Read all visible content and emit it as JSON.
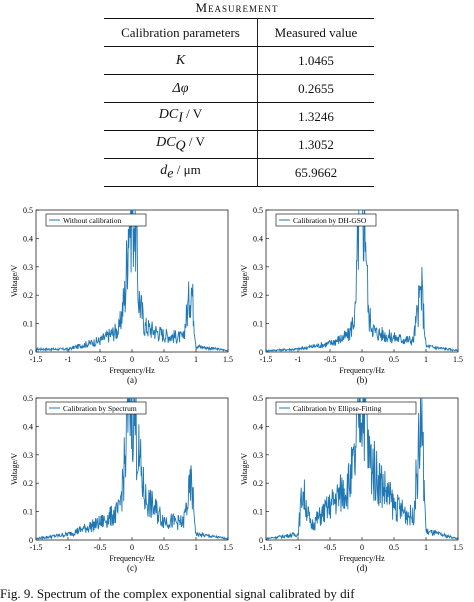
{
  "table": {
    "title": "Measurement",
    "headers": [
      "Calibration parameters",
      "Measured value"
    ],
    "rows": [
      {
        "param_main": "K",
        "param_sub": "",
        "param_unit": "",
        "value": "1.0465"
      },
      {
        "param_main": "Δφ",
        "param_sub": "",
        "param_unit": "",
        "value": "0.2655"
      },
      {
        "param_main": "DC",
        "param_sub": "I",
        "param_unit": " / V",
        "value": "1.3246"
      },
      {
        "param_main": "DC",
        "param_sub": "Q",
        "param_unit": " / V",
        "value": "1.3052"
      },
      {
        "param_main": "d",
        "param_sub": "e",
        "param_unit": " / μm",
        "value": "65.9662"
      }
    ]
  },
  "plots": {
    "xlabel": "Frequency/Hz",
    "ylabel": "Voltage/V",
    "x_ticks": [
      "-1.5",
      "-1",
      "-0.5",
      "0",
      "0.5",
      "1",
      "1.5"
    ],
    "y_ticks": [
      "0",
      "0.1",
      "0.2",
      "0.3",
      "0.4",
      "0.5"
    ],
    "panels": [
      {
        "label": "(a)",
        "legend": "Without calibration"
      },
      {
        "label": "(b)",
        "legend": "Calibration by DH-GSO"
      },
      {
        "label": "(c)",
        "legend": "Calibration by Spectrum"
      },
      {
        "label": "(d)",
        "legend": "Calibration by Ellipse-Fitting"
      }
    ]
  },
  "chart_data": [
    {
      "type": "line",
      "xlabel": "Frequency/Hz",
      "ylabel": "Voltage/V",
      "xlim": [
        -1.5,
        1.5
      ],
      "ylim": [
        0,
        0.5
      ],
      "series": [
        {
          "name": "Without calibration",
          "color": "#1f77b4",
          "x": [
            -1.5,
            -1.0,
            -0.5,
            -0.2,
            -0.1,
            -0.05,
            0.0,
            0.05,
            0.1,
            0.2,
            0.5,
            0.8,
            0.93,
            1.0,
            1.5
          ],
          "y": [
            0.01,
            0.01,
            0.04,
            0.08,
            0.22,
            0.5,
            0.5,
            0.5,
            0.2,
            0.09,
            0.06,
            0.05,
            0.24,
            0.02,
            0.005
          ]
        }
      ]
    },
    {
      "type": "line",
      "xlabel": "Frequency/Hz",
      "ylabel": "Voltage/V",
      "xlim": [
        -1.5,
        1.5
      ],
      "ylim": [
        0,
        0.5
      ],
      "series": [
        {
          "name": "Calibration by DH-GSO",
          "color": "#1f77b4",
          "x": [
            -1.5,
            -1.0,
            -0.5,
            -0.2,
            -0.1,
            -0.05,
            0.0,
            0.05,
            0.1,
            0.2,
            0.5,
            0.8,
            0.93,
            1.0,
            1.5
          ],
          "y": [
            0.005,
            0.01,
            0.03,
            0.06,
            0.14,
            0.5,
            0.5,
            0.5,
            0.13,
            0.07,
            0.05,
            0.04,
            0.23,
            0.02,
            0.005
          ]
        }
      ]
    },
    {
      "type": "line",
      "xlabel": "Frequency/Hz",
      "ylabel": "Voltage/V",
      "xlim": [
        -1.5,
        1.5
      ],
      "ylim": [
        0,
        0.5
      ],
      "series": [
        {
          "name": "Calibration by Spectrum",
          "color": "#1f77b4",
          "x": [
            -1.5,
            -1.0,
            -0.5,
            -0.2,
            -0.1,
            -0.05,
            0.0,
            0.05,
            0.1,
            0.2,
            0.5,
            0.8,
            0.93,
            1.0,
            1.5
          ],
          "y": [
            0.005,
            0.02,
            0.06,
            0.1,
            0.29,
            0.5,
            0.5,
            0.42,
            0.3,
            0.15,
            0.07,
            0.06,
            0.2,
            0.02,
            0.005
          ]
        }
      ]
    },
    {
      "type": "line",
      "xlabel": "Frequency/Hz",
      "ylabel": "Voltage/V",
      "xlim": [
        -1.5,
        1.5
      ],
      "ylim": [
        0,
        0.5
      ],
      "series": [
        {
          "name": "Calibration by Ellipse-Fitting",
          "color": "#1f77b4",
          "x": [
            -1.5,
            -1.0,
            -0.93,
            -0.8,
            -0.5,
            -0.2,
            -0.1,
            -0.05,
            0.0,
            0.05,
            0.1,
            0.2,
            0.5,
            0.8,
            0.93,
            1.0,
            1.5
          ],
          "y": [
            0.005,
            0.02,
            0.18,
            0.05,
            0.12,
            0.2,
            0.28,
            0.5,
            0.5,
            0.5,
            0.3,
            0.24,
            0.12,
            0.08,
            0.43,
            0.03,
            0.005
          ]
        }
      ]
    }
  ],
  "caption": "Fig. 9.   Spectrum of the complex exponential signal calibrated by dif"
}
